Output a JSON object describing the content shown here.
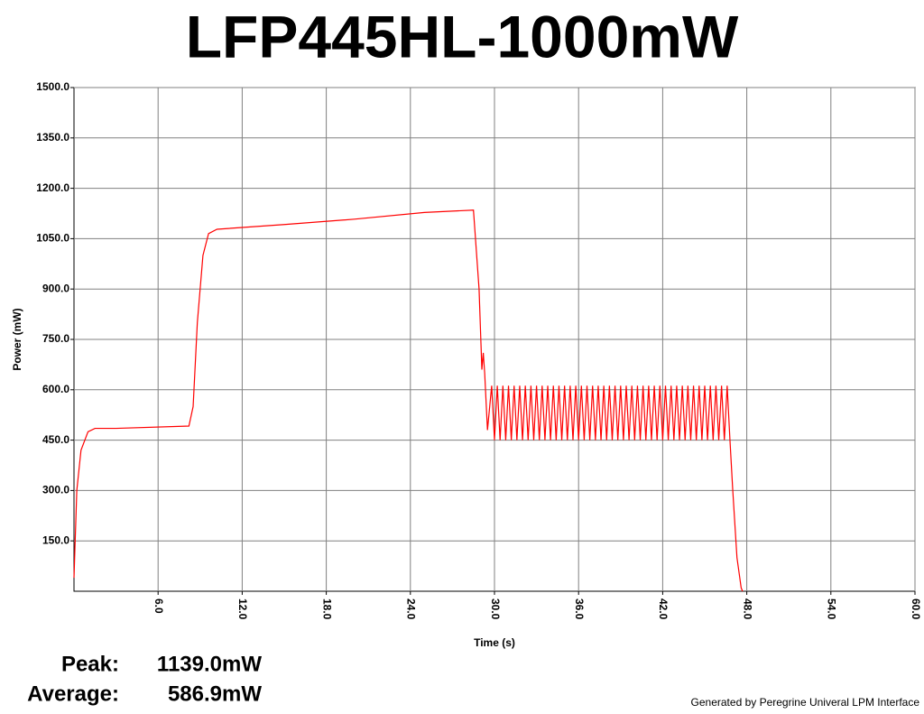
{
  "chart_data": {
    "type": "line",
    "title": "LFP445HL-1000mW",
    "xlabel": "Time (s)",
    "ylabel": "Power (mW)",
    "xlim": [
      0,
      60
    ],
    "ylim": [
      0,
      1500
    ],
    "xticks": [
      {
        "value": 6,
        "label": "6.0"
      },
      {
        "value": 12,
        "label": "12.0"
      },
      {
        "value": 18,
        "label": "18.0"
      },
      {
        "value": 24,
        "label": "24.0"
      },
      {
        "value": 30,
        "label": "30.0"
      },
      {
        "value": 36,
        "label": "36.0"
      },
      {
        "value": 42,
        "label": "42.0"
      },
      {
        "value": 48,
        "label": "48.0"
      },
      {
        "value": 54,
        "label": "54.0"
      },
      {
        "value": 60,
        "label": "60.0"
      }
    ],
    "yticks": [
      {
        "value": 150,
        "label": "150.0"
      },
      {
        "value": 300,
        "label": "300.0"
      },
      {
        "value": 450,
        "label": "450.0"
      },
      {
        "value": 600,
        "label": "600.0"
      },
      {
        "value": 750,
        "label": "750.0"
      },
      {
        "value": 900,
        "label": "900.0"
      },
      {
        "value": 1050,
        "label": "1050.0"
      },
      {
        "value": 1200,
        "label": "1200.0"
      },
      {
        "value": 1350,
        "label": "1350.0"
      },
      {
        "value": 1500,
        "label": "1500.0"
      }
    ],
    "grid": true,
    "series": [
      {
        "name": "Power",
        "color": "#ff0000",
        "x": [
          0,
          0.2,
          0.5,
          1,
          1.5,
          3,
          8.2,
          8.5,
          8.8,
          9.2,
          9.6,
          10.2,
          15,
          20,
          25,
          28.5,
          28.9,
          29.1,
          29.2,
          29.3,
          29.5,
          29.8,
          30.0,
          30.2,
          30.4,
          30.6,
          30.8,
          31.0,
          31.2,
          31.4,
          31.6,
          31.8,
          32.0,
          32.2,
          32.4,
          32.6,
          32.8,
          33.0,
          33.2,
          33.4,
          33.6,
          33.8,
          34.0,
          34.2,
          34.4,
          34.6,
          34.8,
          35.0,
          35.2,
          35.4,
          35.6,
          35.8,
          36.0,
          36.2,
          36.4,
          36.6,
          36.8,
          37.0,
          37.2,
          37.4,
          37.6,
          37.8,
          38.0,
          38.2,
          38.4,
          38.6,
          38.8,
          39.0,
          39.2,
          39.4,
          39.6,
          39.8,
          40.0,
          40.2,
          40.4,
          40.6,
          40.8,
          41.0,
          41.2,
          41.4,
          41.6,
          41.8,
          42.0,
          42.2,
          42.4,
          42.6,
          42.8,
          43.0,
          43.2,
          43.4,
          43.6,
          43.8,
          44.0,
          44.2,
          44.4,
          44.6,
          44.8,
          45.0,
          45.2,
          45.4,
          45.6,
          45.8,
          46.0,
          46.2,
          46.4,
          46.6,
          46.8,
          47.0,
          47.3,
          47.6,
          47.7
        ],
        "values": [
          40,
          300,
          420,
          475,
          485,
          485,
          492,
          550,
          800,
          1000,
          1065,
          1078,
          1092,
          1108,
          1128,
          1135,
          900,
          660,
          710,
          650,
          480,
          612,
          450,
          612,
          450,
          612,
          450,
          612,
          450,
          612,
          450,
          612,
          450,
          612,
          450,
          612,
          450,
          612,
          450,
          612,
          450,
          612,
          450,
          612,
          450,
          612,
          450,
          612,
          450,
          612,
          450,
          612,
          450,
          612,
          450,
          612,
          450,
          612,
          450,
          612,
          450,
          612,
          450,
          612,
          450,
          612,
          450,
          612,
          450,
          612,
          450,
          612,
          450,
          612,
          450,
          612,
          450,
          612,
          450,
          612,
          450,
          612,
          450,
          612,
          450,
          612,
          450,
          612,
          450,
          612,
          450,
          612,
          450,
          612,
          450,
          612,
          450,
          612,
          450,
          612,
          450,
          612,
          450,
          612,
          450,
          612,
          450,
          300,
          100,
          10,
          0
        ]
      }
    ],
    "stats": [
      {
        "label": "Peak:",
        "value": "1139.0mW"
      },
      {
        "label": "Average:",
        "value": "586.9mW"
      }
    ],
    "footer": "Generated by Peregrine Univeral LPM Interface"
  }
}
